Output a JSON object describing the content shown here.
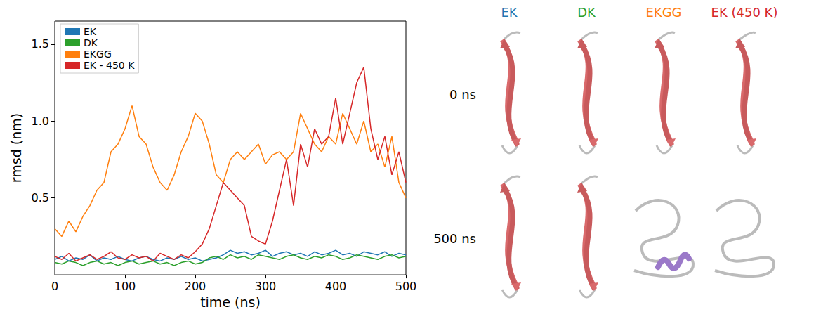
{
  "chart_data": {
    "type": "line",
    "x_label": "time (ns)",
    "y_label": "rmsd (nm)",
    "xlim": [
      0,
      500
    ],
    "xticks": [
      0,
      100,
      200,
      300,
      400,
      500
    ],
    "ylim": [
      0,
      1.65
    ],
    "yticks": [
      0.5,
      {
        "value": 1,
        "label": "1.0"
      },
      1.5
    ],
    "grid": false,
    "legend": "upper left",
    "x": [
      0,
      10,
      20,
      30,
      40,
      50,
      60,
      70,
      80,
      90,
      100,
      110,
      120,
      130,
      140,
      150,
      160,
      170,
      180,
      190,
      200,
      210,
      220,
      230,
      240,
      250,
      260,
      270,
      280,
      290,
      300,
      310,
      320,
      330,
      340,
      350,
      360,
      370,
      380,
      390,
      400,
      410,
      420,
      430,
      440,
      450,
      460,
      470,
      480,
      490,
      500
    ],
    "series": [
      {
        "name": "EK",
        "color": "#1f77b4",
        "values": [
          0.1,
          0.12,
          0.09,
          0.11,
          0.1,
          0.13,
          0.09,
          0.11,
          0.1,
          0.12,
          0.1,
          0.09,
          0.11,
          0.12,
          0.1,
          0.09,
          0.11,
          0.1,
          0.12,
          0.1,
          0.11,
          0.09,
          0.1,
          0.11,
          0.13,
          0.16,
          0.14,
          0.15,
          0.13,
          0.14,
          0.16,
          0.12,
          0.14,
          0.15,
          0.13,
          0.14,
          0.12,
          0.15,
          0.13,
          0.14,
          0.16,
          0.13,
          0.14,
          0.12,
          0.15,
          0.14,
          0.13,
          0.15,
          0.12,
          0.14,
          0.13
        ]
      },
      {
        "name": "DK",
        "color": "#2ca02c",
        "values": [
          0.08,
          0.07,
          0.09,
          0.08,
          0.06,
          0.08,
          0.09,
          0.07,
          0.08,
          0.06,
          0.08,
          0.09,
          0.07,
          0.08,
          0.09,
          0.07,
          0.08,
          0.06,
          0.08,
          0.09,
          0.07,
          0.08,
          0.11,
          0.12,
          0.1,
          0.13,
          0.11,
          0.12,
          0.1,
          0.13,
          0.12,
          0.11,
          0.1,
          0.12,
          0.13,
          0.11,
          0.1,
          0.12,
          0.11,
          0.13,
          0.12,
          0.1,
          0.11,
          0.13,
          0.12,
          0.11,
          0.1,
          0.12,
          0.13,
          0.11,
          0.12
        ]
      },
      {
        "name": "EKGG",
        "color": "#ff7f0e",
        "values": [
          0.3,
          0.25,
          0.35,
          0.28,
          0.38,
          0.45,
          0.55,
          0.6,
          0.8,
          0.85,
          0.95,
          1.1,
          0.9,
          0.85,
          0.7,
          0.6,
          0.55,
          0.65,
          0.8,
          0.9,
          1.05,
          1.0,
          0.85,
          0.65,
          0.6,
          0.75,
          0.8,
          0.75,
          0.8,
          0.85,
          0.72,
          0.78,
          0.8,
          0.75,
          0.8,
          1.05,
          0.95,
          0.85,
          0.8,
          0.9,
          0.85,
          1.05,
          0.95,
          0.85,
          1.0,
          0.8,
          0.85,
          0.7,
          0.9,
          0.6,
          0.5
        ]
      },
      {
        "name": "EK - 450 K",
        "color": "#d62728",
        "values": [
          0.12,
          0.1,
          0.14,
          0.09,
          0.11,
          0.13,
          0.1,
          0.12,
          0.15,
          0.11,
          0.1,
          0.13,
          0.11,
          0.12,
          0.09,
          0.14,
          0.12,
          0.1,
          0.13,
          0.11,
          0.15,
          0.2,
          0.3,
          0.45,
          0.6,
          0.55,
          0.5,
          0.45,
          0.25,
          0.22,
          0.2,
          0.35,
          0.55,
          0.75,
          0.45,
          0.85,
          0.7,
          0.95,
          0.85,
          0.9,
          1.15,
          0.85,
          1.05,
          1.25,
          1.35,
          0.95,
          0.75,
          0.9,
          0.65,
          0.8,
          0.6
        ]
      }
    ]
  },
  "structures": {
    "columns": [
      {
        "label": "EK",
        "color": "#1f77b4"
      },
      {
        "label": "DK",
        "color": "#2ca02c"
      },
      {
        "label": "EKGG",
        "color": "#ff7f0e"
      },
      {
        "label": "EK (450 K)",
        "color": "#d62728"
      }
    ],
    "rows": [
      "0 ns",
      "500 ns"
    ]
  }
}
